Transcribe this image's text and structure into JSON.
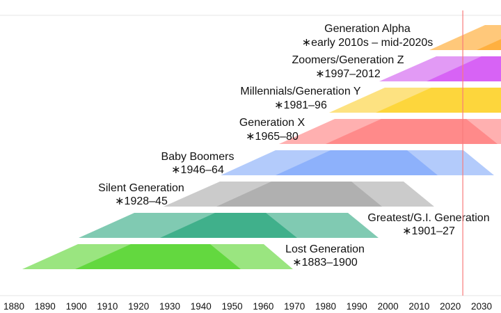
{
  "generations": [
    {
      "id": "alpha",
      "title": "Generation Alpha",
      "years": "∗early 2010s – mid-2020s",
      "light": "#ffc87a",
      "dark": "#ffb040"
    },
    {
      "id": "z",
      "title": "Zoomers/Generation Z",
      "years": "∗1997–2012",
      "light": "#e29af5",
      "dark": "#d763f5"
    },
    {
      "id": "y",
      "title": "Millennials/Generation Y",
      "years": "∗1981–96",
      "light": "#fde281",
      "dark": "#fdd63c"
    },
    {
      "id": "x",
      "title": "Generation X",
      "years": "∗1965–80",
      "light": "#ffb0b0",
      "dark": "#ff8a8a"
    },
    {
      "id": "boomers",
      "title": "Baby Boomers",
      "years": "∗1946–64",
      "light": "#b3cbfb",
      "dark": "#8db1fb"
    },
    {
      "id": "silent",
      "title": "Silent Generation",
      "years": "∗1928–45",
      "light": "#cbcbcb",
      "dark": "#b0b0b0"
    },
    {
      "id": "greatest",
      "title": "Greatest/G.I. Generation",
      "years": "∗1901–27",
      "light": "#80cab2",
      "dark": "#40b08b"
    },
    {
      "id": "lost",
      "title": "Lost Generation",
      "years": "∗1883–1900",
      "light": "#9ae580",
      "dark": "#63d83f"
    }
  ],
  "axis": {
    "ticks": [
      "1880",
      "1890",
      "1900",
      "1910",
      "1920",
      "1930",
      "1940",
      "1950",
      "1960",
      "1970",
      "1980",
      "1990",
      "2000",
      "2010",
      "2020",
      "2030"
    ]
  },
  "current_year_marker": {
    "year": 2024,
    "color": "#f87a7a"
  }
}
